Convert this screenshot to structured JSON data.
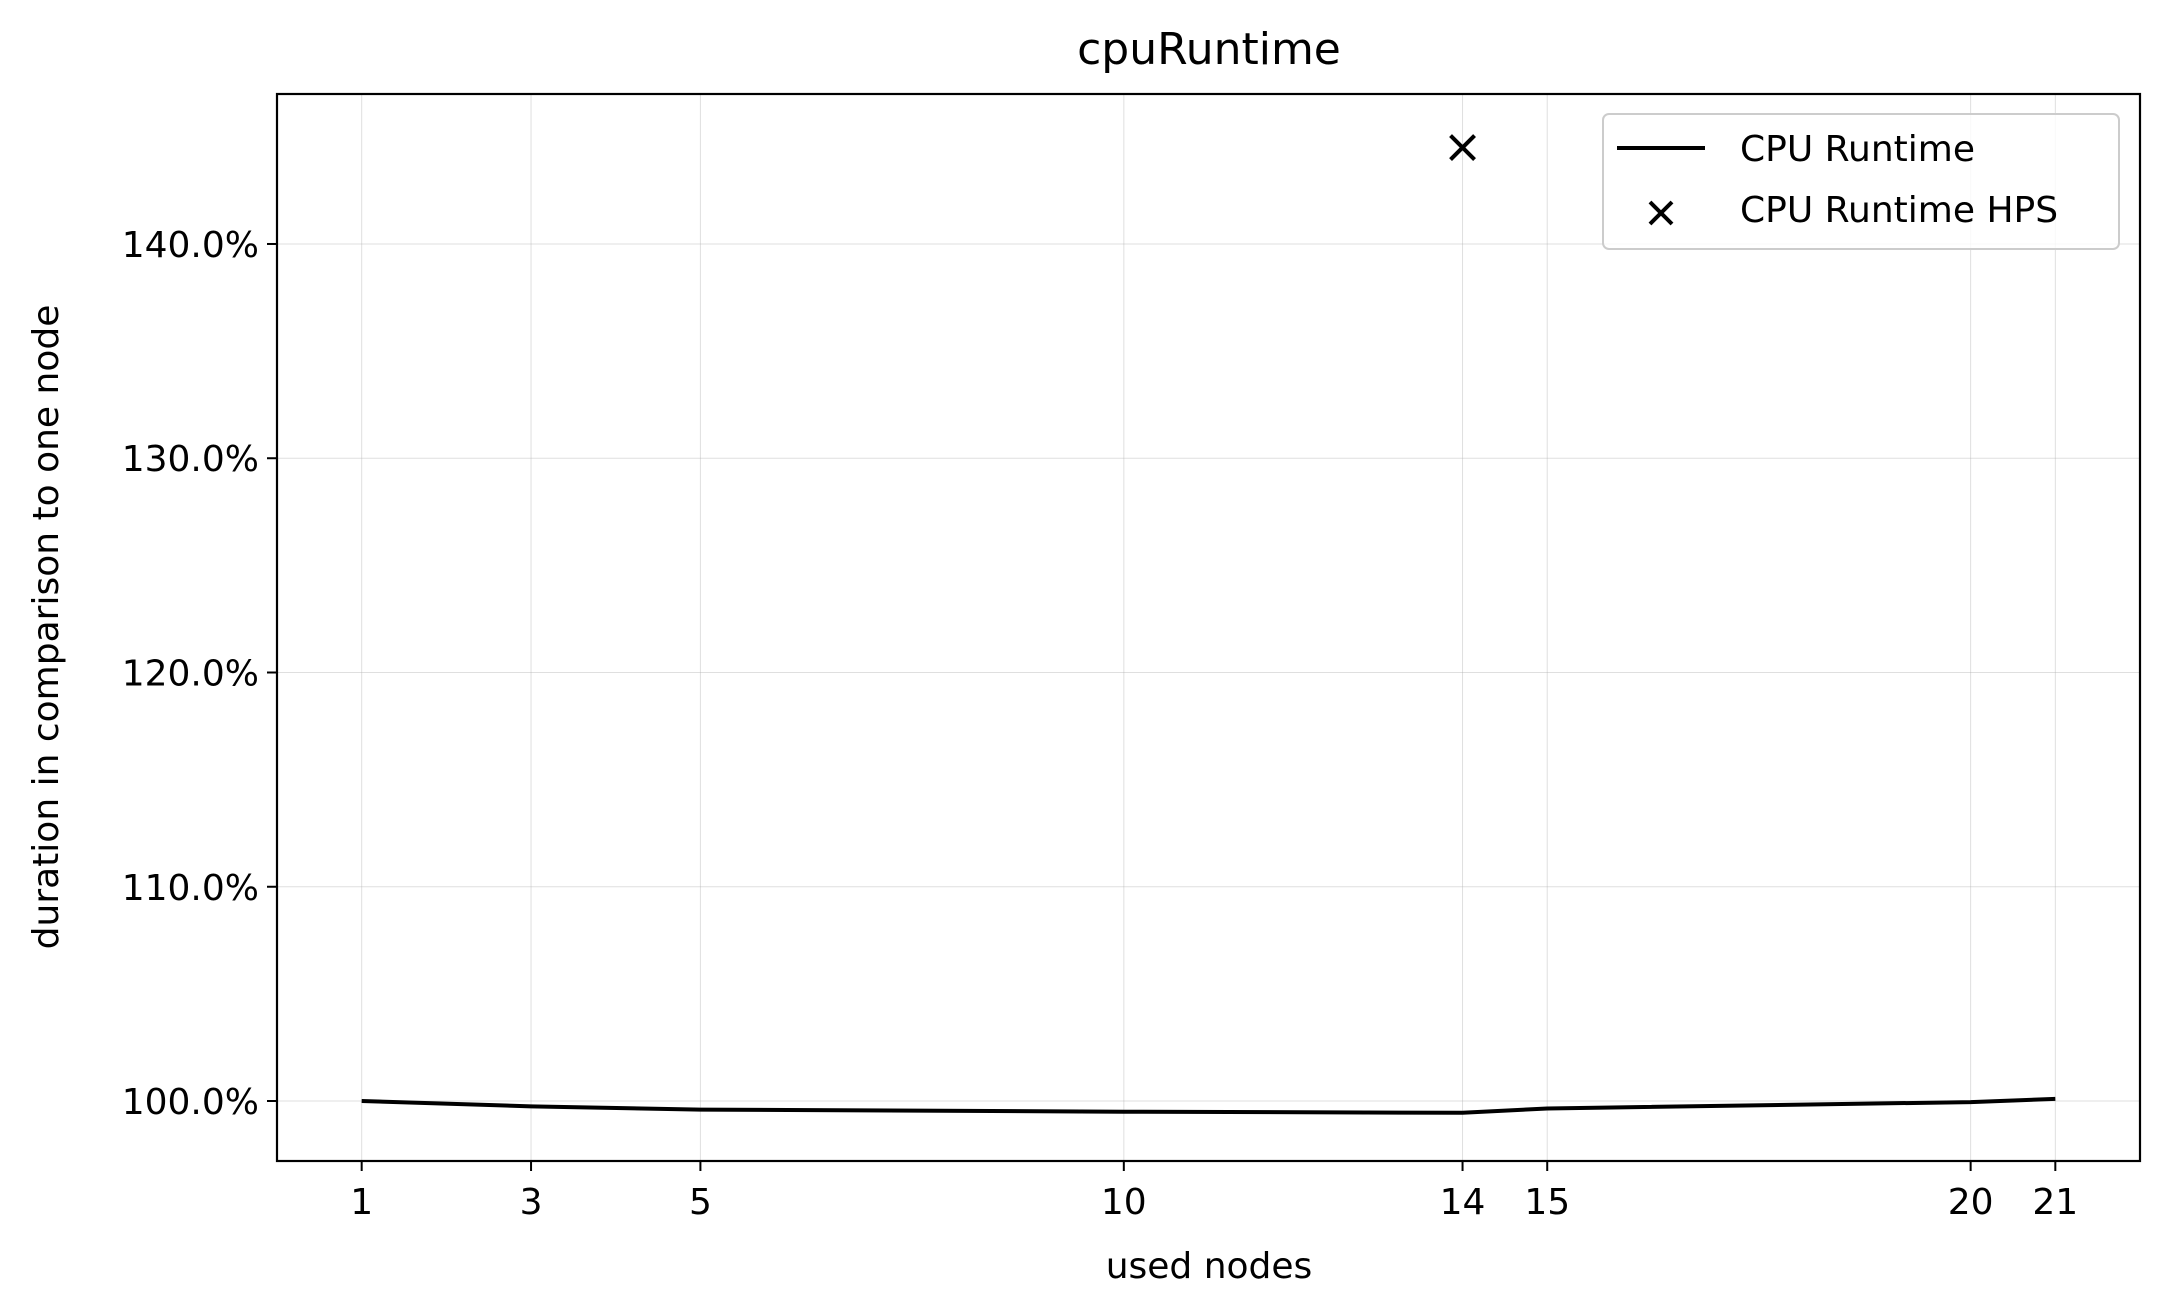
{
  "chart_data": {
    "type": "line",
    "title": "cpuRuntime",
    "xlabel": "used nodes",
    "ylabel": "duration in comparison to one node",
    "x_ticks": [
      1,
      3,
      5,
      10,
      14,
      15,
      20,
      21
    ],
    "y_ticks": [
      100,
      110,
      120,
      130,
      140
    ],
    "y_tick_format": "percent_1dp",
    "xlim": [
      0,
      22
    ],
    "ylim": [
      97.2,
      147
    ],
    "grid": true,
    "legend_position": "top-right",
    "series": [
      {
        "name": "CPU Runtime",
        "style": "line",
        "color": "#000000",
        "x": [
          1,
          3,
          5,
          10,
          14,
          15,
          20,
          21
        ],
        "y": [
          100.0,
          99.75,
          99.6,
          99.5,
          99.45,
          99.65,
          99.95,
          100.1
        ]
      },
      {
        "name": "CPU Runtime HPS",
        "style": "marker-x",
        "color": "#000000",
        "x": [
          14
        ],
        "y": [
          144.5
        ]
      }
    ]
  }
}
